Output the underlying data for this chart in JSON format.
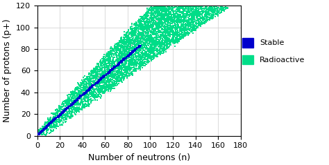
{
  "title": "",
  "xlabel": "Number of neutrons (n)",
  "ylabel": "Number of protons (p+)",
  "xlim": [
    0,
    180
  ],
  "ylim": [
    0,
    120
  ],
  "xticks": [
    0,
    20,
    40,
    60,
    80,
    100,
    120,
    140,
    160,
    180
  ],
  "yticks": [
    0,
    20,
    40,
    60,
    80,
    100,
    120
  ],
  "stable_color": "#0000CC",
  "radioactive_color": "#00DD88",
  "line_color": "#999999",
  "background_color": "#ffffff",
  "legend_stable": "Stable",
  "legend_radioactive": "Radioactive",
  "marker_size_stable": 3.5,
  "marker_size_radio": 2.0,
  "xlabel_fontsize": 9,
  "ylabel_fontsize": 9,
  "tick_fontsize": 8
}
